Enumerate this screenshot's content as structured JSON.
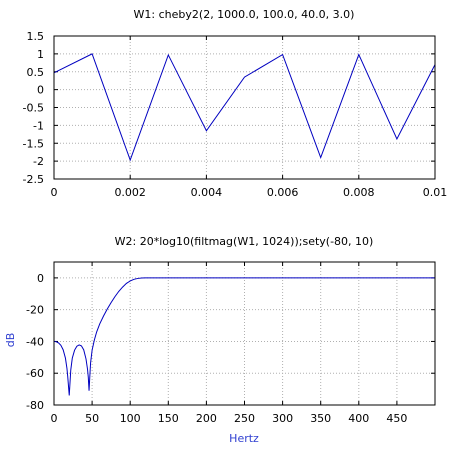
{
  "chart_data": [
    {
      "type": "line",
      "title": "W1: cheby2(2, 1000.0, 100.0, 40.0, 3.0)",
      "xlabel": "",
      "ylabel": "",
      "xlim": [
        0,
        0.01
      ],
      "ylim": [
        -2.5,
        1.5
      ],
      "grid": true,
      "x_ticks": [
        0,
        0.002,
        0.004,
        0.006,
        0.008,
        0.01
      ],
      "x_tick_labels": [
        "0",
        "0.002",
        "0.004",
        "0.006",
        "0.008",
        "0.01"
      ],
      "y_ticks": [
        1.5,
        1,
        0.5,
        0,
        -0.5,
        -1,
        -1.5,
        -2,
        -2.5
      ],
      "y_tick_labels": [
        "1.5",
        "1",
        "0.5",
        "0",
        "-0.5",
        "-1",
        "-1.5",
        "-2",
        "-2.5"
      ],
      "series": [
        {
          "color": "#0000c0",
          "x": [
            0,
            0.001,
            0.002,
            0.003,
            0.004,
            0.005,
            0.006,
            0.007,
            0.008,
            0.009,
            0.01
          ],
          "y": [
            0.47,
            1.0,
            -1.97,
            0.97,
            -1.15,
            0.35,
            0.98,
            -1.9,
            0.98,
            -1.38,
            0.7
          ]
        }
      ]
    },
    {
      "type": "line",
      "title": "W2: 20*log10(filtmag(W1, 1024));sety(-80, 10)",
      "xlabel": "Hertz",
      "ylabel": "dB",
      "xlim": [
        0,
        500
      ],
      "ylim": [
        -80,
        10
      ],
      "grid": true,
      "x_ticks": [
        0,
        50,
        100,
        150,
        200,
        250,
        300,
        350,
        400,
        450
      ],
      "x_tick_labels": [
        "0",
        "50",
        "100",
        "150",
        "200",
        "250",
        "300",
        "350",
        "400",
        "450"
      ],
      "y_ticks": [
        0,
        -20,
        -40,
        -60,
        -80
      ],
      "y_tick_labels": [
        "0",
        "-20",
        "-40",
        "-60",
        "-80"
      ],
      "series": [
        {
          "color": "#0000c0",
          "x": [
            0,
            3,
            6,
            9,
            12,
            15,
            17,
            18,
            19,
            20,
            21,
            22,
            24,
            27,
            30,
            33,
            36,
            39,
            42,
            44,
            45,
            46,
            47,
            48,
            50,
            53,
            56,
            60,
            65,
            70,
            75,
            80,
            85,
            90,
            95,
            100,
            105,
            110,
            115,
            120,
            125,
            130,
            140,
            160,
            200,
            300,
            400,
            500
          ],
          "y": [
            -40,
            -40.2,
            -40.9,
            -42.4,
            -45.2,
            -50.5,
            -57,
            -62,
            -68,
            -74,
            -66,
            -58,
            -50.5,
            -45.5,
            -43,
            -42.2,
            -42.8,
            -45.3,
            -51,
            -57.5,
            -62.5,
            -71,
            -62,
            -53.5,
            -45.5,
            -39,
            -34,
            -29,
            -24,
            -19.5,
            -15.5,
            -11.8,
            -8.5,
            -5.8,
            -3.5,
            -1.9,
            -0.9,
            -0.35,
            -0.1,
            -0.02,
            0,
            0,
            0,
            0,
            0,
            0,
            0,
            0
          ]
        }
      ]
    }
  ]
}
